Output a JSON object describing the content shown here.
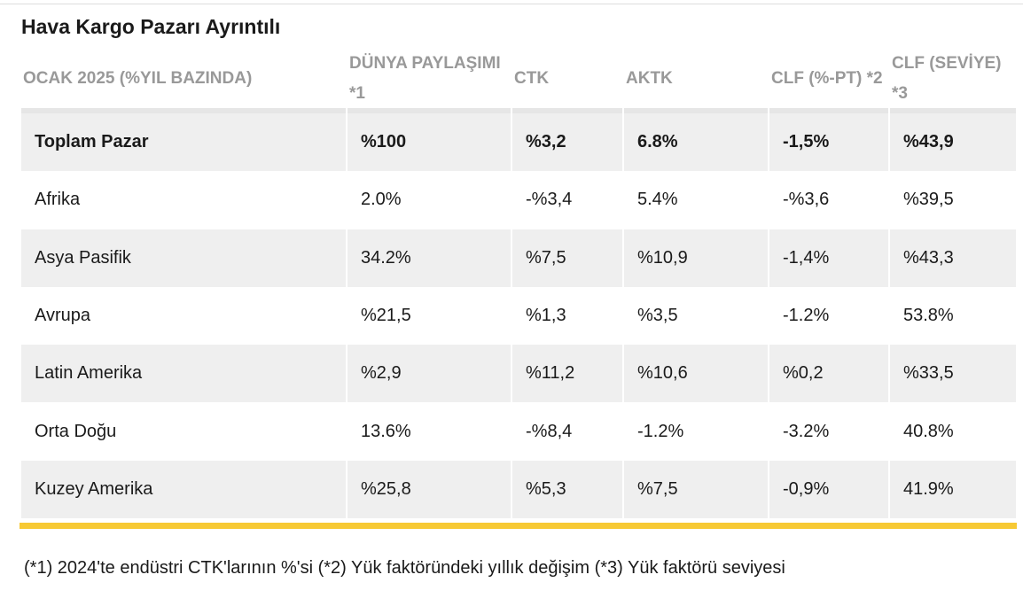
{
  "title": "Hava Kargo Pazarı Ayrıntılı",
  "table": {
    "header": [
      "OCAK 2025 (%YIL BAZINDA)",
      "DÜNYA PAYLAŞIMI *1",
      "CTK",
      "AKTK",
      "CLF (%-PT) *2",
      "CLF (SEVİYE) *3"
    ],
    "rows": [
      [
        "Toplam Pazar",
        "%100",
        "%3,2",
        "6.8%",
        "-1,5%",
        "%43,9"
      ],
      [
        "Afrika",
        "2.0%",
        "-%3,4",
        "5.4%",
        "-%3,6",
        "%39,5"
      ],
      [
        "Asya Pasifik",
        "34.2%",
        "%7,5",
        "%10,9",
        "-1,4%",
        "%43,3"
      ],
      [
        "Avrupa",
        "%21,5",
        "%1,3",
        "%3,5",
        "-1.2%",
        "53.8%"
      ],
      [
        "Latin Amerika",
        "%2,9",
        "%11,2",
        "%10,6",
        "%0,2",
        "%33,5"
      ],
      [
        "Orta Doğu",
        "13.6%",
        "-%8,4",
        "-1.2%",
        "-3.2%",
        "40.8%"
      ],
      [
        "Kuzey Amerika",
        "%25,8",
        "%5,3",
        "%7,5",
        "-0,9%",
        "41.9%"
      ]
    ]
  },
  "footnote": "(*1) 2024'te endüstri CTK'larının %'si (*2) Yük faktöründeki yıllık değişim (*3) Yük faktörü seviyesi"
}
